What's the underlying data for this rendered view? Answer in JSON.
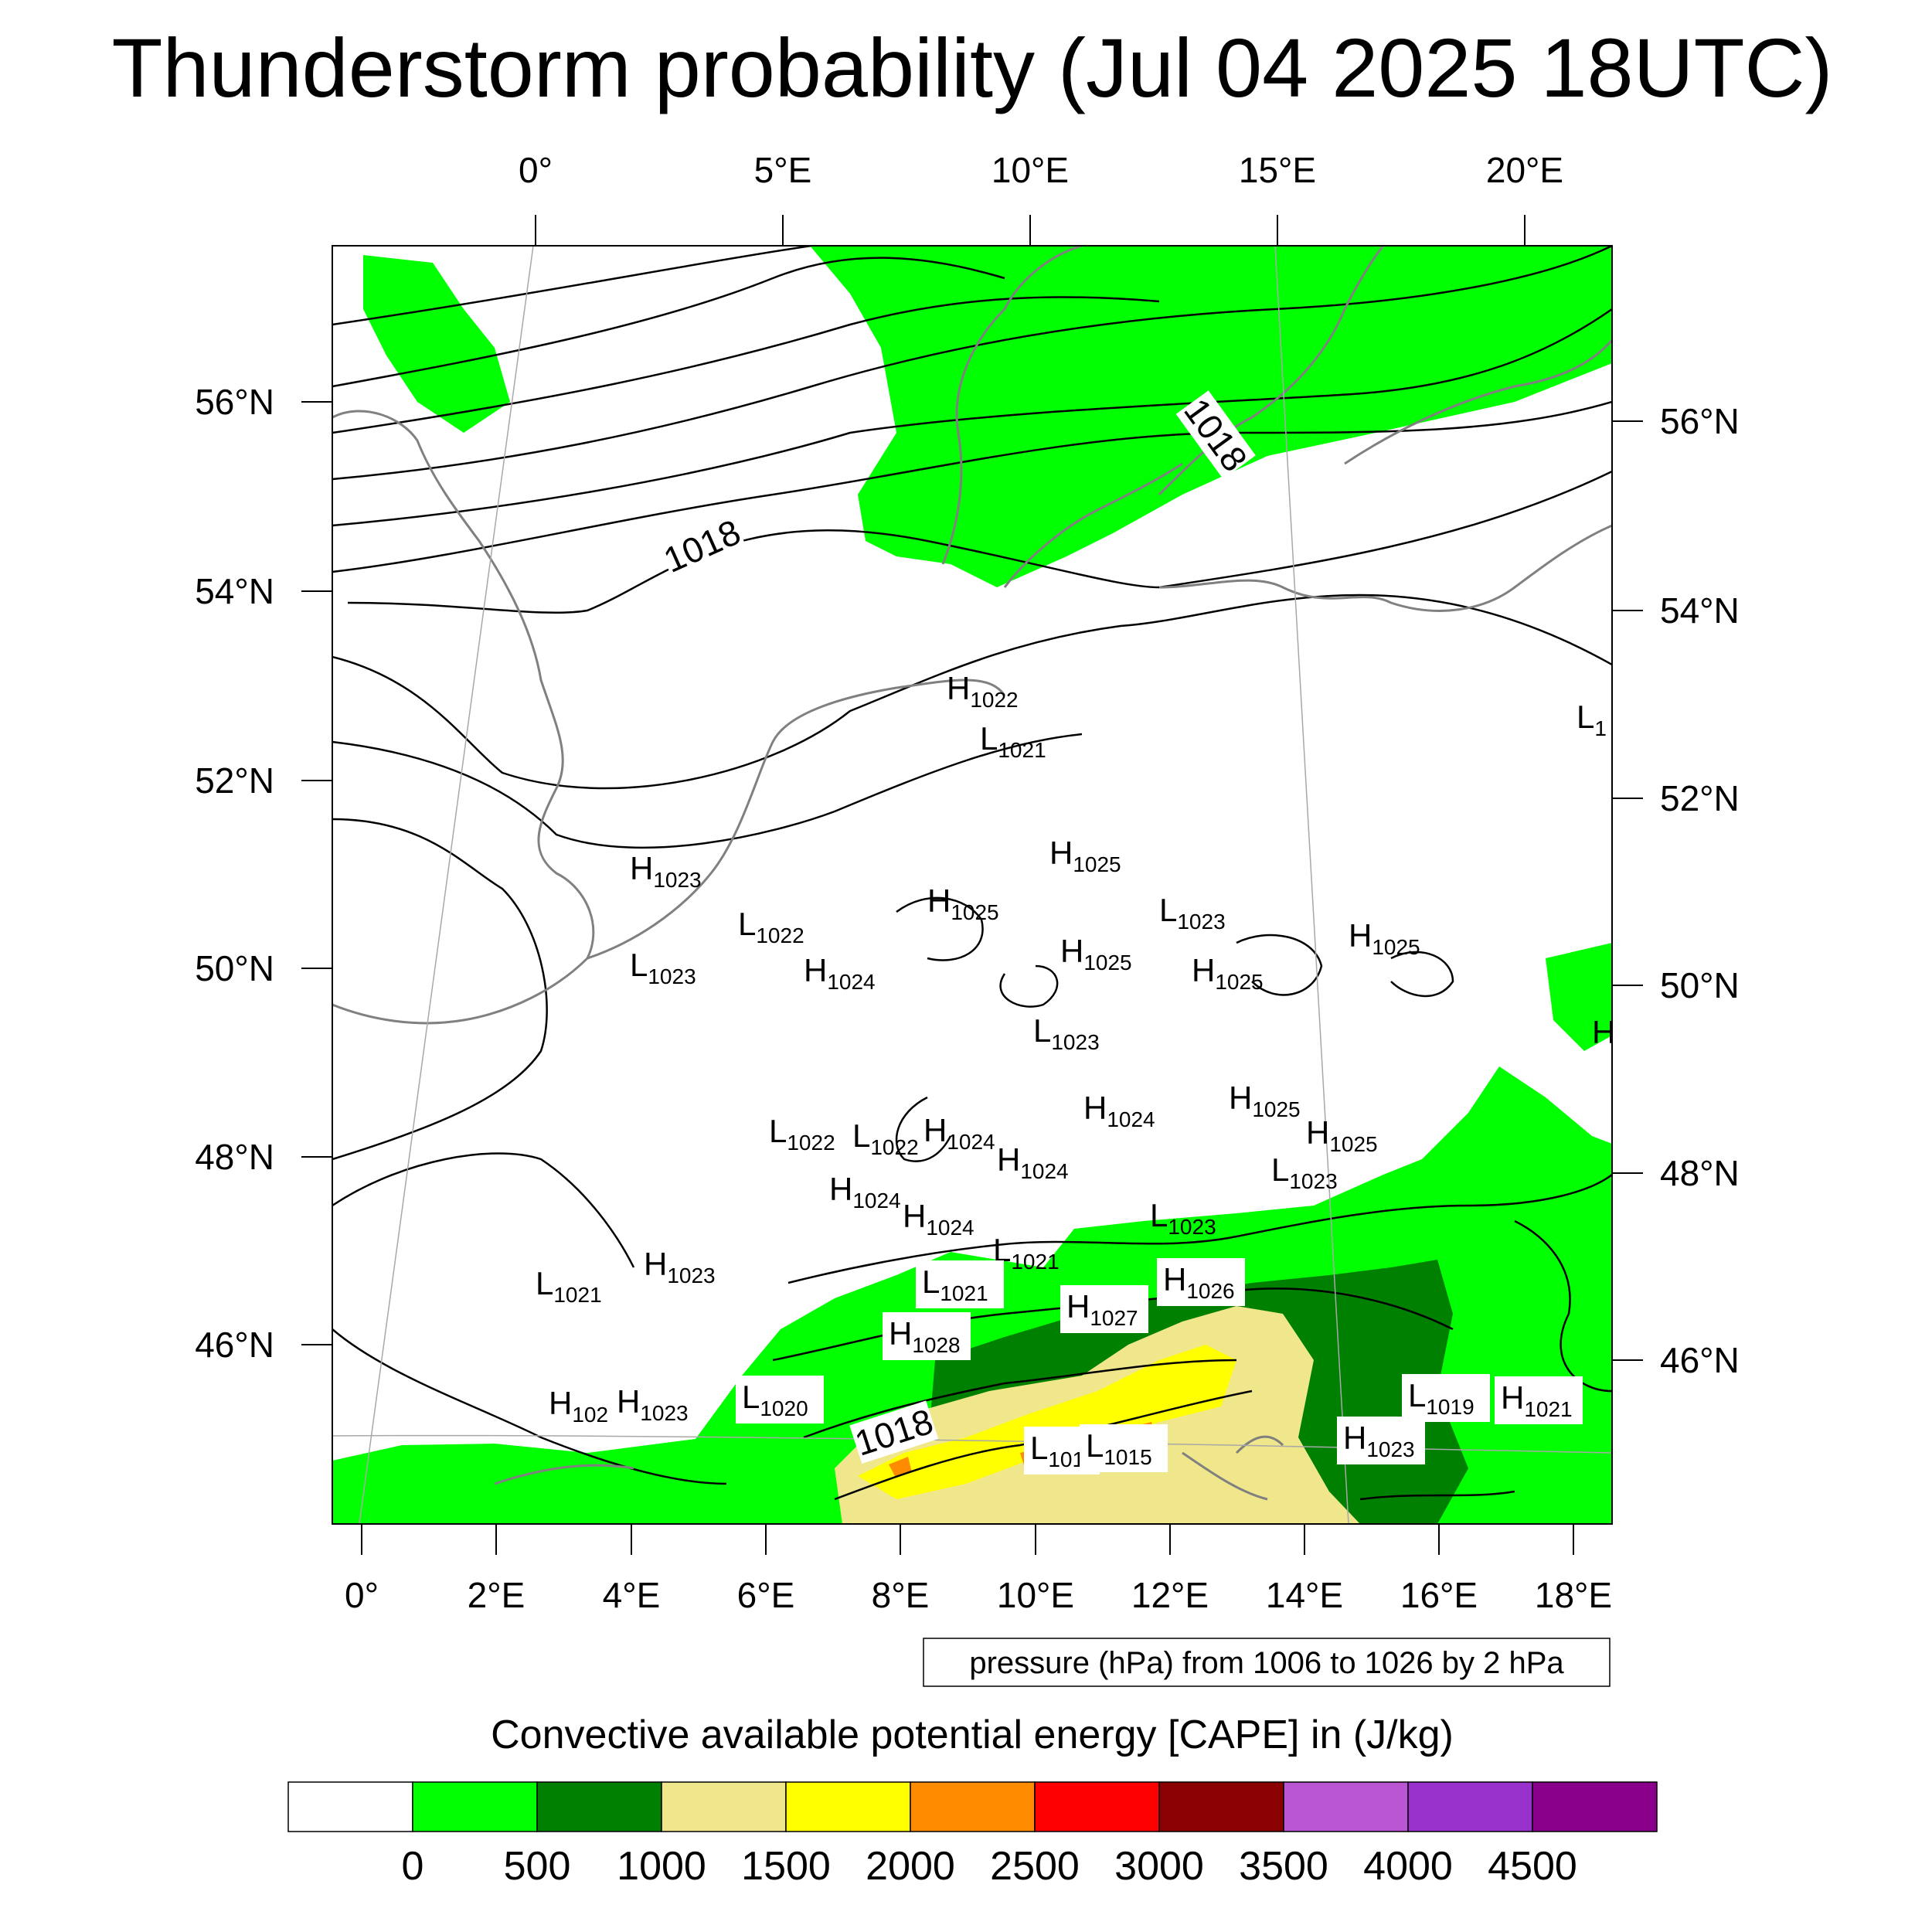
{
  "title": "Thunderstorm probability (Jul 04 2025 18UTC)",
  "top_lon_labels": [
    "0°",
    "5°E",
    "10°E",
    "15°E",
    "20°E"
  ],
  "bottom_lon_labels": [
    "0°",
    "2°E",
    "4°E",
    "6°E",
    "8°E",
    "10°E",
    "12°E",
    "14°E",
    "16°E",
    "18°E"
  ],
  "left_lat_labels": [
    "56°N",
    "54°N",
    "52°N",
    "50°N",
    "48°N",
    "46°N"
  ],
  "right_lat_labels": [
    "56°N",
    "54°N",
    "52°N",
    "50°N",
    "48°N",
    "46°N"
  ],
  "contour_labels": [
    "1018",
    "1018",
    "1018"
  ],
  "pressure_centers": [
    {
      "t": "H",
      "v": "1022"
    },
    {
      "t": "L",
      "v": "1021"
    },
    {
      "t": "H",
      "v": "1023"
    },
    {
      "t": "L",
      "v": "1022"
    },
    {
      "t": "L",
      "v": "1023"
    },
    {
      "t": "H",
      "v": "1024"
    },
    {
      "t": "H",
      "v": "1025"
    },
    {
      "t": "H",
      "v": "1025"
    },
    {
      "t": "H",
      "v": "1025"
    },
    {
      "t": "L",
      "v": "1023"
    },
    {
      "t": "H",
      "v": "1025"
    },
    {
      "t": "H",
      "v": "1025"
    },
    {
      "t": "L",
      "v": "1023"
    },
    {
      "t": "H",
      "v": "1024"
    },
    {
      "t": "H",
      "v": "1025"
    },
    {
      "t": "H",
      "v": "1025"
    },
    {
      "t": "L",
      "v": "1023"
    },
    {
      "t": "L",
      "v": "1022"
    },
    {
      "t": "L",
      "v": "1022"
    },
    {
      "t": "H",
      "v": "1024"
    },
    {
      "t": "H",
      "v": "1024"
    },
    {
      "t": "H",
      "v": "1024"
    },
    {
      "t": "H",
      "v": "1024"
    },
    {
      "t": "L",
      "v": "1023"
    },
    {
      "t": "L",
      "v": "1021"
    },
    {
      "t": "L",
      "v": "1021"
    },
    {
      "t": "H",
      "v": "1023"
    },
    {
      "t": "L",
      "v": "1021"
    },
    {
      "t": "H",
      "v": "1027"
    },
    {
      "t": "H",
      "v": "1026"
    },
    {
      "t": "H",
      "v": "1028"
    },
    {
      "t": "H",
      "v": "102"
    },
    {
      "t": "H",
      "v": "1023"
    },
    {
      "t": "L",
      "v": "1020"
    },
    {
      "t": "L",
      "v": "101"
    },
    {
      "t": "L",
      "v": "1015"
    },
    {
      "t": "H",
      "v": "1023"
    },
    {
      "t": "L",
      "v": "1019"
    },
    {
      "t": "H",
      "v": "1021"
    },
    {
      "t": "L",
      "v": "1"
    },
    {
      "t": "H",
      "v": ""
    }
  ],
  "info_box": "pressure (hPa) from 1006 to 1026 by 2 hPa",
  "colorbar": {
    "title": "Convective available potential energy [CAPE] in (J/kg)",
    "labels": [
      "0",
      "500",
      "1000",
      "1500",
      "2000",
      "2500",
      "3000",
      "3500",
      "4000",
      "4500"
    ],
    "colors": [
      "#ffffff",
      "#00ff00",
      "#008000",
      "#f0e68c",
      "#ffff00",
      "#ff8c00",
      "#ff0000",
      "#8b0000",
      "#ba55d3",
      "#9932cc",
      "#8b008b"
    ]
  }
}
